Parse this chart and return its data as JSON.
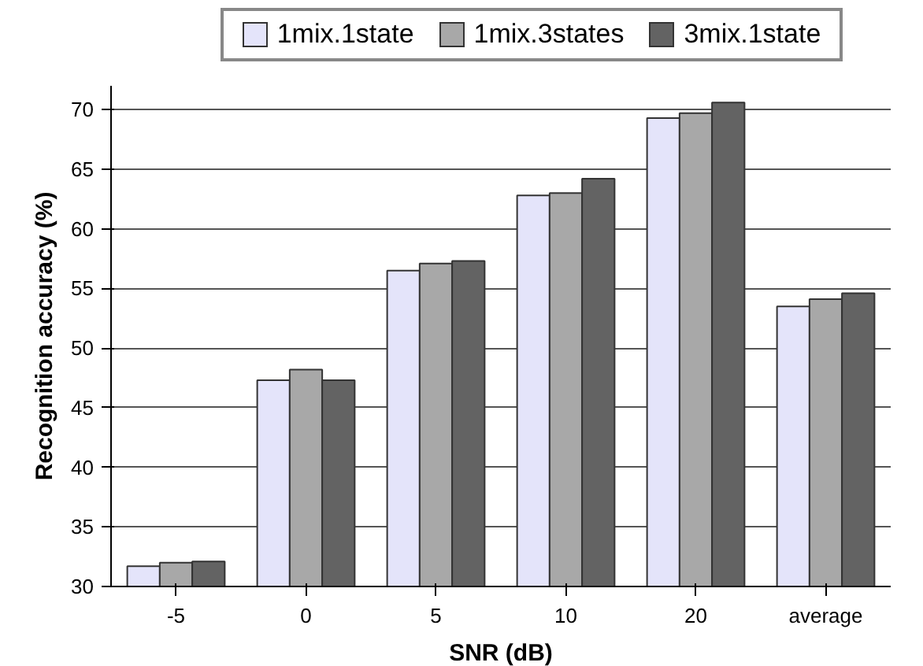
{
  "chart_data": {
    "type": "bar",
    "xlabel": "SNR (dB)",
    "ylabel": "Recognition accuracy (%)",
    "categories": [
      "-5",
      "0",
      "5",
      "10",
      "20",
      "average"
    ],
    "series": [
      {
        "name": "1mix.1state",
        "color": "#e4e4fa",
        "values": [
          31.7,
          47.3,
          56.5,
          62.8,
          69.3,
          53.5
        ]
      },
      {
        "name": "1mix.3states",
        "color": "#a8a8a8",
        "values": [
          32.0,
          48.2,
          57.1,
          63.0,
          69.7,
          54.1
        ]
      },
      {
        "name": "3mix.1state",
        "color": "#636363",
        "values": [
          32.1,
          47.3,
          57.3,
          64.2,
          70.6,
          54.6
        ]
      }
    ],
    "ylim": [
      30,
      72
    ],
    "yticks": [
      30,
      35,
      40,
      45,
      50,
      55,
      60,
      65,
      70
    ],
    "grid": "y",
    "legend": "top"
  }
}
